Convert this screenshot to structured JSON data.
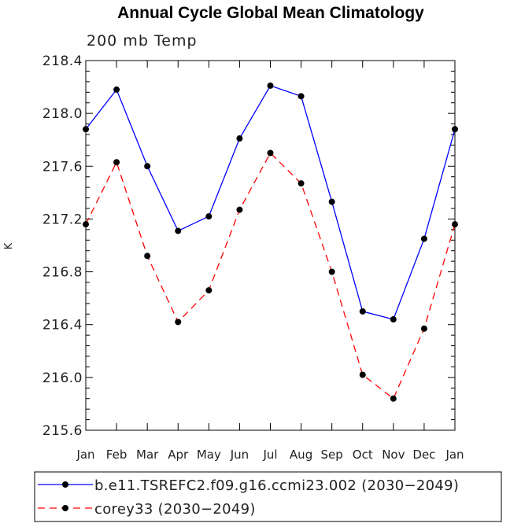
{
  "chart_data": {
    "type": "line",
    "title": "Annual Cycle Global Mean Climatology",
    "subtitle": "200 mb Temp",
    "xlabel": "",
    "ylabel": "K",
    "categories": [
      "Jan",
      "Feb",
      "Mar",
      "Apr",
      "May",
      "Jun",
      "Jul",
      "Aug",
      "Sep",
      "Oct",
      "Nov",
      "Dec",
      "Jan"
    ],
    "ylim": [
      215.6,
      218.4
    ],
    "yticks": [
      "215.6",
      "216.0",
      "216.4",
      "216.8",
      "217.2",
      "217.6",
      "218.0",
      "218.4"
    ],
    "legend_position": "bottom",
    "series": [
      {
        "name": "b.e11.TSREFC2.f09.g16.ccmi23.002 (2030−2049)",
        "color": "#0000ff",
        "dash": "solid",
        "values": [
          217.88,
          218.18,
          217.6,
          217.11,
          217.22,
          217.81,
          218.21,
          218.13,
          217.33,
          216.5,
          216.44,
          217.05,
          217.88
        ]
      },
      {
        "name": "corey33 (2030−2049)",
        "color": "#ff0000",
        "dash": "dashed",
        "values": [
          217.16,
          217.63,
          216.92,
          216.42,
          216.66,
          217.27,
          217.7,
          217.47,
          216.8,
          216.02,
          215.84,
          216.37,
          217.16
        ]
      }
    ]
  }
}
